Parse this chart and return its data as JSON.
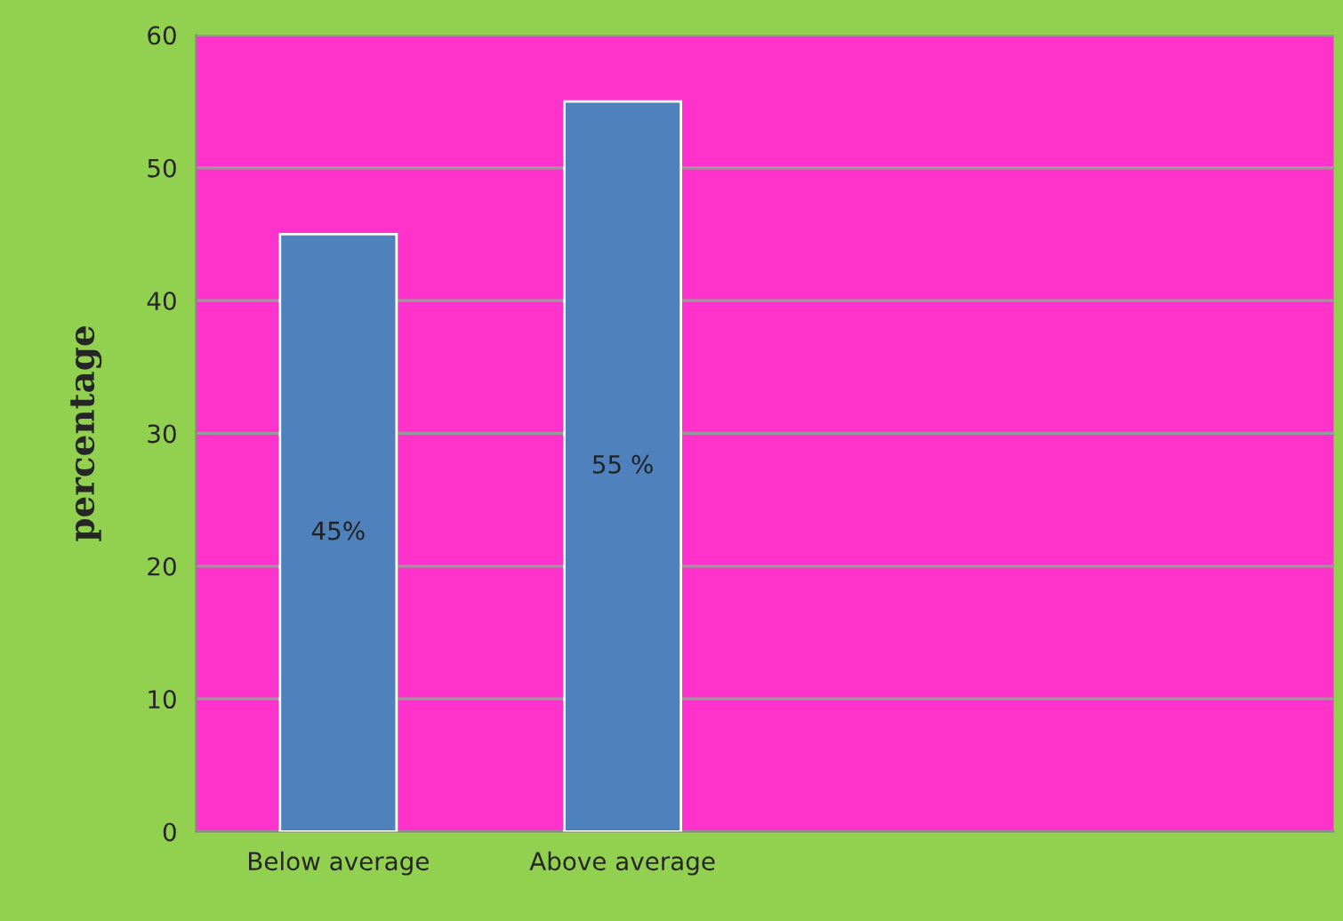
{
  "chart_data": {
    "type": "bar",
    "ylabel": "percentage",
    "categories": [
      "Below average",
      "Above average",
      null,
      null
    ],
    "values": [
      45,
      55,
      null,
      null
    ],
    "value_labels": [
      "45%",
      "55 %",
      null,
      null
    ],
    "color": "#4f81bd",
    "ylim": [
      0,
      60
    ],
    "yticks": [
      0,
      10,
      20,
      30,
      40,
      50,
      60
    ],
    "grid": "y",
    "legend": false
  }
}
